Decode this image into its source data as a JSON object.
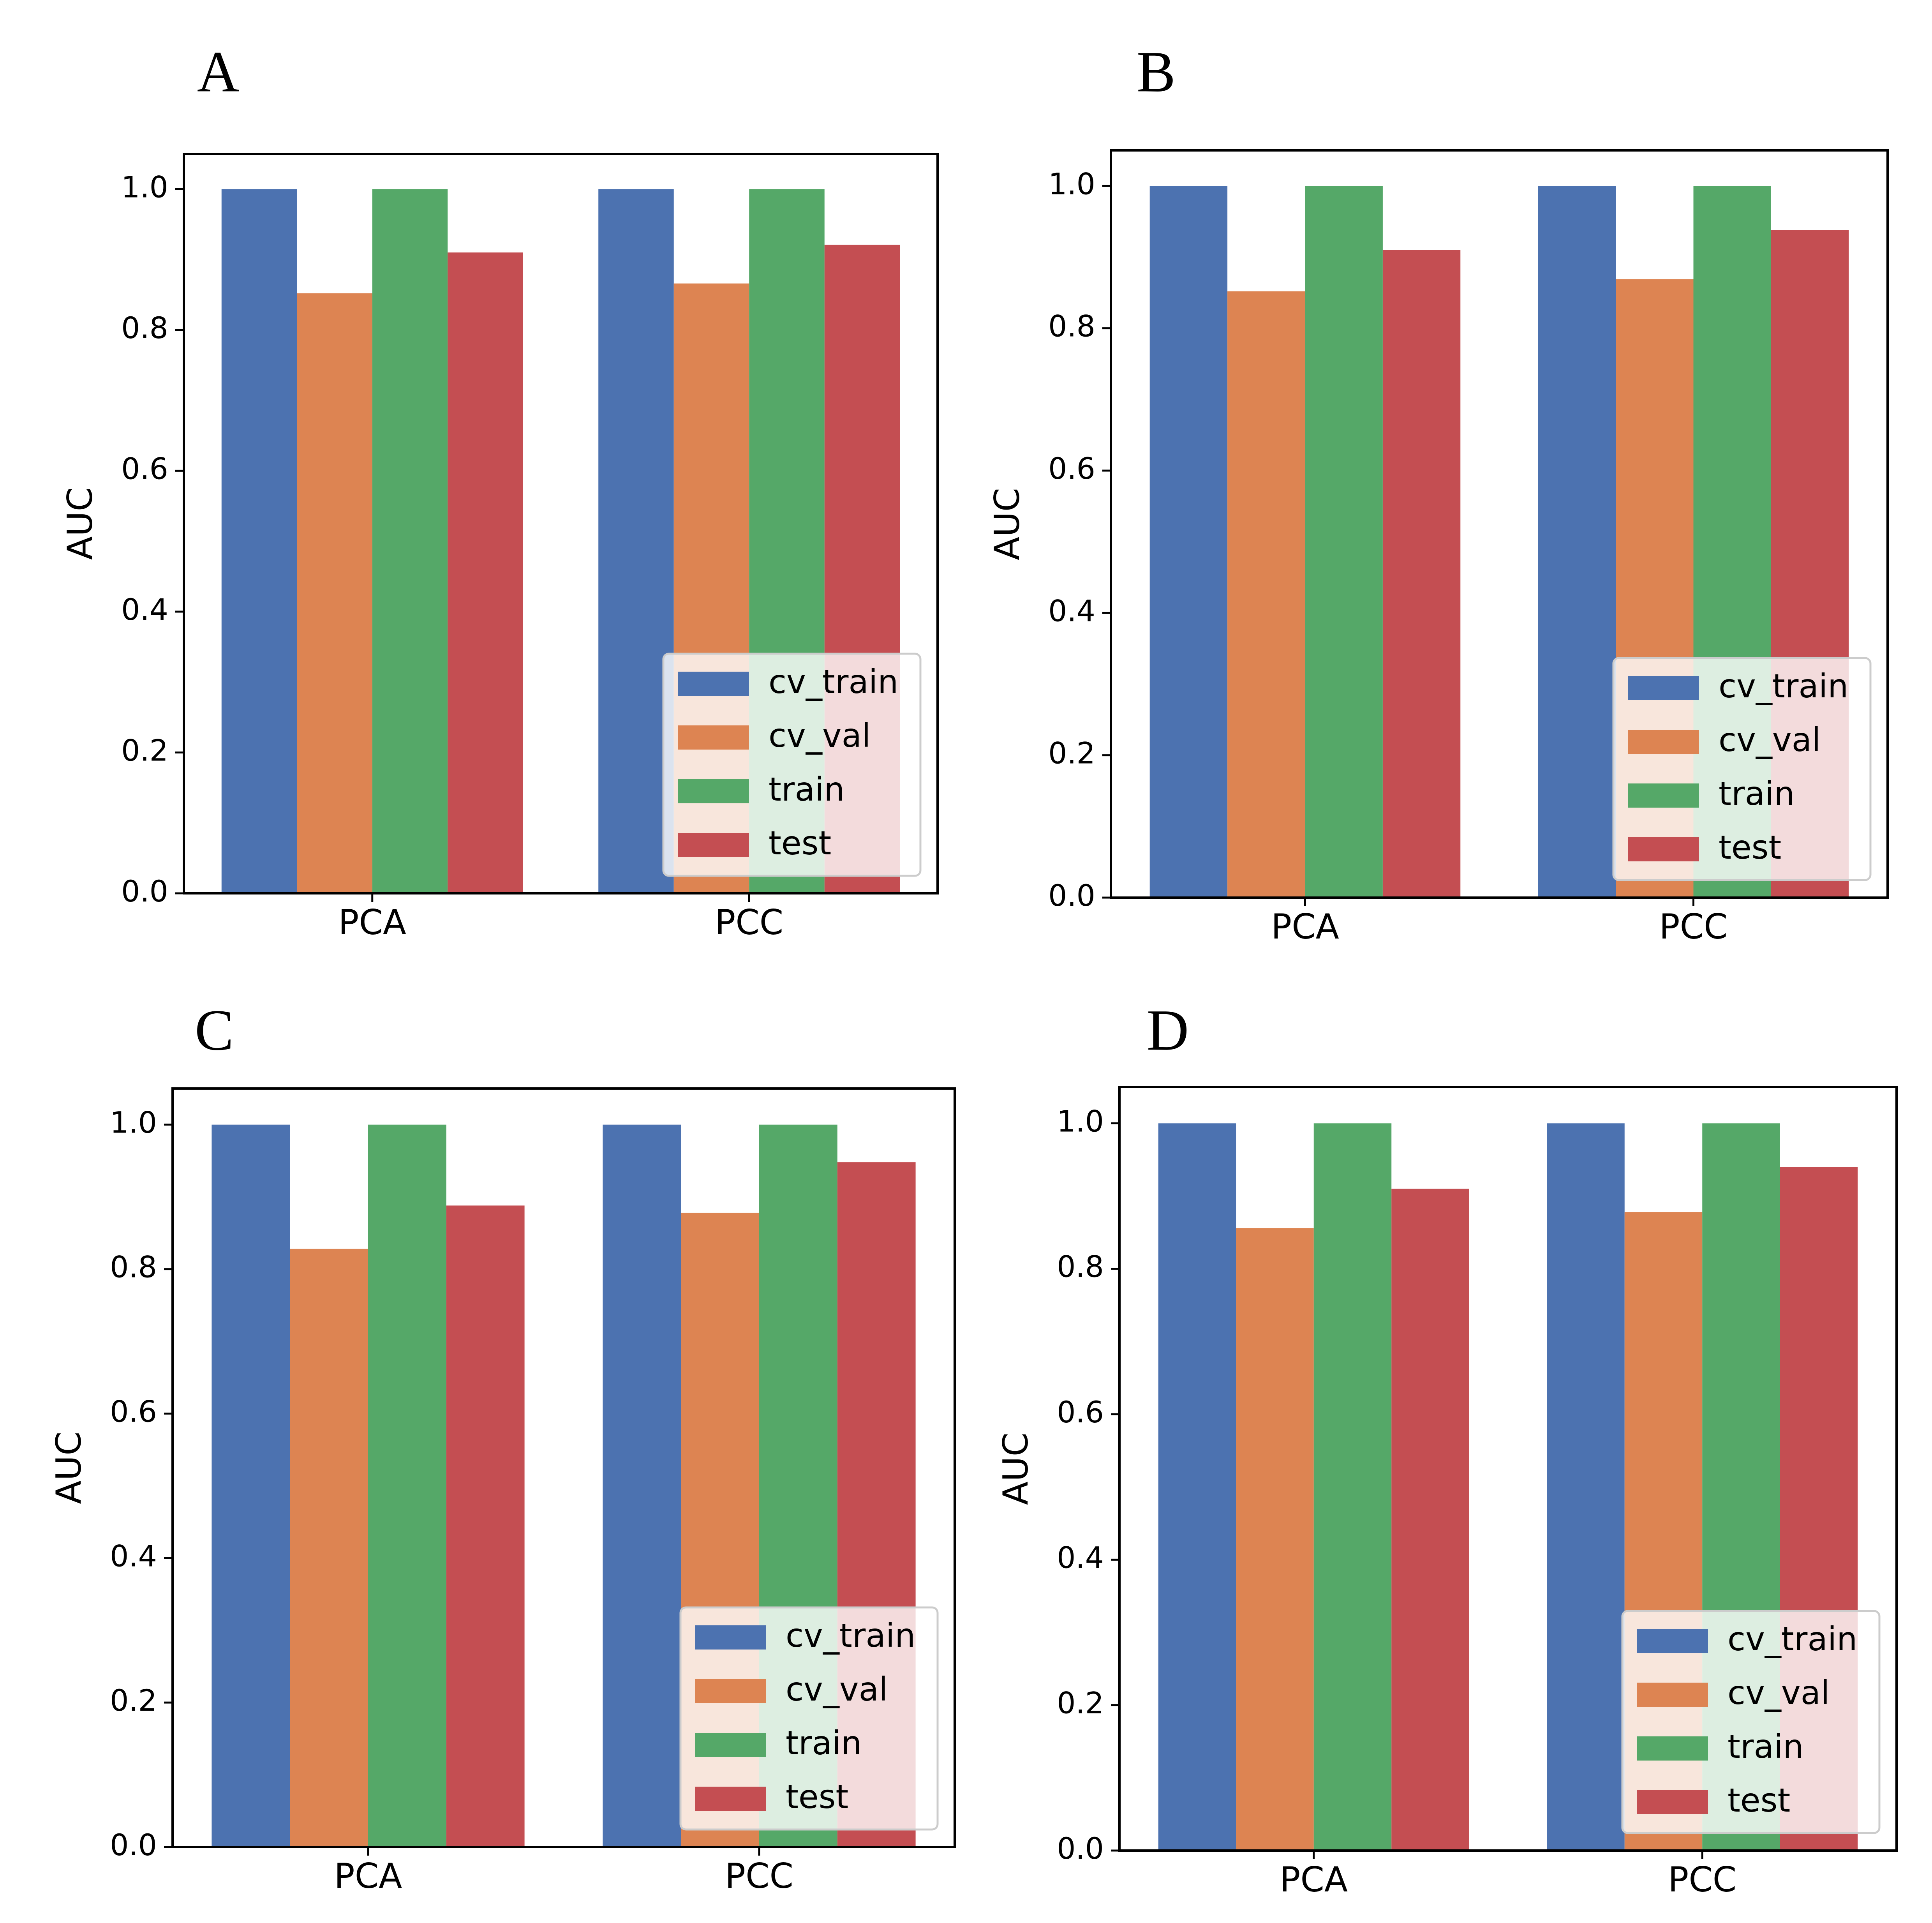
{
  "chart_data": [
    {
      "panel_label": "A",
      "type": "bar",
      "categories": [
        "PCA",
        "PCC"
      ],
      "ylabel": "AUC",
      "ylim": [
        0,
        1.05
      ],
      "yticks": [
        "0.0",
        "0.2",
        "0.4",
        "0.6",
        "0.8",
        "1.0"
      ],
      "legend_position": "lower right",
      "series": [
        {
          "name": "cv_train",
          "color": "#4c72b0",
          "values": [
            1.0,
            1.0
          ]
        },
        {
          "name": "cv_val",
          "color": "#dd8452",
          "values": [
            0.852,
            0.866
          ]
        },
        {
          "name": "train",
          "color": "#55a868",
          "values": [
            1.0,
            1.0
          ]
        },
        {
          "name": "test",
          "color": "#c44e52",
          "values": [
            0.91,
            0.921
          ]
        }
      ]
    },
    {
      "panel_label": "B",
      "type": "bar",
      "categories": [
        "PCA",
        "PCC"
      ],
      "ylabel": "AUC",
      "ylim": [
        0,
        1.05
      ],
      "yticks": [
        "0.0",
        "0.2",
        "0.4",
        "0.6",
        "0.8",
        "1.0"
      ],
      "legend_position": "lower right",
      "series": [
        {
          "name": "cv_train",
          "color": "#4c72b0",
          "values": [
            1.0,
            1.0
          ]
        },
        {
          "name": "cv_val",
          "color": "#dd8452",
          "values": [
            0.852,
            0.869
          ]
        },
        {
          "name": "train",
          "color": "#55a868",
          "values": [
            1.0,
            1.0
          ]
        },
        {
          "name": "test",
          "color": "#c44e52",
          "values": [
            0.91,
            0.938
          ]
        }
      ]
    },
    {
      "panel_label": "C",
      "type": "bar",
      "categories": [
        "PCA",
        "PCC"
      ],
      "ylabel": "AUC",
      "ylim": [
        0,
        1.05
      ],
      "yticks": [
        "0.0",
        "0.2",
        "0.4",
        "0.6",
        "0.8",
        "1.0"
      ],
      "legend_position": "lower right",
      "series": [
        {
          "name": "cv_train",
          "color": "#4c72b0",
          "values": [
            1.0,
            1.0
          ]
        },
        {
          "name": "cv_val",
          "color": "#dd8452",
          "values": [
            0.828,
            0.878
          ]
        },
        {
          "name": "train",
          "color": "#55a868",
          "values": [
            1.0,
            1.0
          ]
        },
        {
          "name": "test",
          "color": "#c44e52",
          "values": [
            0.888,
            0.948
          ]
        }
      ]
    },
    {
      "panel_label": "D",
      "type": "bar",
      "categories": [
        "PCA",
        "PCC"
      ],
      "ylabel": "AUC",
      "ylim": [
        0,
        1.05
      ],
      "yticks": [
        "0.0",
        "0.2",
        "0.4",
        "0.6",
        "0.8",
        "1.0"
      ],
      "legend_position": "lower right",
      "series": [
        {
          "name": "cv_train",
          "color": "#4c72b0",
          "values": [
            1.0,
            1.0
          ]
        },
        {
          "name": "cv_val",
          "color": "#dd8452",
          "values": [
            0.856,
            0.878
          ]
        },
        {
          "name": "train",
          "color": "#55a868",
          "values": [
            1.0,
            1.0
          ]
        },
        {
          "name": "test",
          "color": "#c44e52",
          "values": [
            0.91,
            0.94
          ]
        }
      ]
    }
  ]
}
